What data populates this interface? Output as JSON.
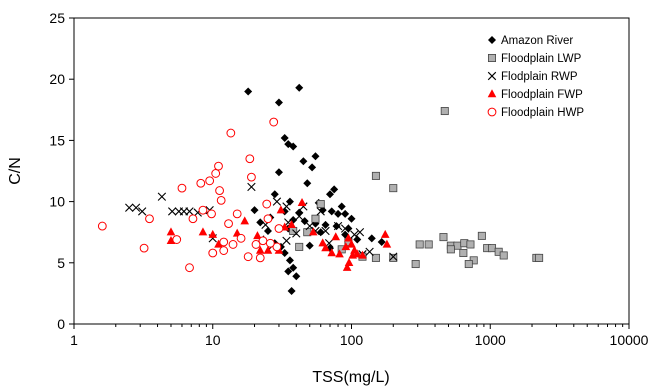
{
  "chart_data": {
    "type": "scatter",
    "xlabel": "TSS(mg/L)",
    "ylabel": "C/N",
    "x_scale": "log",
    "xlim": [
      1,
      10000
    ],
    "ylim": [
      0,
      25
    ],
    "x_ticks": [
      "1",
      "10",
      "100",
      "1000",
      "10000"
    ],
    "y_ticks": [
      "0",
      "5",
      "10",
      "15",
      "20",
      "25"
    ],
    "grid": false,
    "legend_position": "top-right",
    "series": [
      {
        "name": "Amazon River",
        "marker": "diamond",
        "color": "#000000",
        "points": [
          [
            18,
            19
          ],
          [
            42,
            19.3
          ],
          [
            30,
            18.1
          ],
          [
            33,
            15.2
          ],
          [
            35,
            14.7
          ],
          [
            38,
            14.5
          ],
          [
            55,
            13.7
          ],
          [
            45,
            13.3
          ],
          [
            52,
            12.8
          ],
          [
            30,
            12.4
          ],
          [
            48,
            11.5
          ],
          [
            75,
            11
          ],
          [
            70,
            10.6
          ],
          [
            28,
            10.6
          ],
          [
            36,
            10
          ],
          [
            58,
            9.9
          ],
          [
            85,
            9.6
          ],
          [
            62,
            9.3
          ],
          [
            20,
            9.3
          ],
          [
            33,
            9.2
          ],
          [
            72,
            9.2
          ],
          [
            80,
            9
          ],
          [
            90,
            9
          ],
          [
            42,
            9.1
          ],
          [
            100,
            8.6
          ],
          [
            26,
            8.7
          ],
          [
            38,
            8.5
          ],
          [
            46,
            8.4
          ],
          [
            22,
            8.3
          ],
          [
            55,
            8.2
          ],
          [
            65,
            8.1
          ],
          [
            78,
            8
          ],
          [
            95,
            7.8
          ],
          [
            35,
            7.8
          ],
          [
            25,
            7.6
          ],
          [
            60,
            7.5
          ],
          [
            90,
            7.3
          ],
          [
            140,
            7
          ],
          [
            110,
            6.9
          ],
          [
            165,
            6.7
          ],
          [
            28,
            6.6
          ],
          [
            50,
            6.4
          ],
          [
            70,
            6.2
          ],
          [
            31,
            6.3
          ],
          [
            33,
            5.8
          ],
          [
            36,
            5.2
          ],
          [
            38,
            4.6
          ],
          [
            35,
            4.3
          ],
          [
            40,
            3.9
          ],
          [
            37,
            2.7
          ]
        ]
      },
      {
        "name": "Floodplain LWP",
        "marker": "square",
        "color": "#b0b0b0",
        "points": [
          [
            470,
            17.4
          ],
          [
            150,
            12.1
          ],
          [
            200,
            11.1
          ],
          [
            60,
            9.8
          ],
          [
            55,
            8.6
          ],
          [
            48,
            7.5
          ],
          [
            95,
            6.7
          ],
          [
            310,
            6.5
          ],
          [
            360,
            6.5
          ],
          [
            460,
            7.1
          ],
          [
            520,
            6.4
          ],
          [
            580,
            6.4
          ],
          [
            650,
            6.6
          ],
          [
            720,
            6.5
          ],
          [
            870,
            7.2
          ],
          [
            950,
            6.2
          ],
          [
            1030,
            6.2
          ],
          [
            1150,
            5.9
          ],
          [
            1250,
            5.6
          ],
          [
            520,
            6.1
          ],
          [
            760,
            5.2
          ],
          [
            640,
            5.8
          ],
          [
            700,
            4.9
          ],
          [
            2150,
            5.4
          ],
          [
            2250,
            5.4
          ],
          [
            200,
            5.4
          ],
          [
            290,
            4.9
          ],
          [
            150,
            5.4
          ],
          [
            120,
            5.5
          ],
          [
            85,
            6.1
          ],
          [
            42,
            6.3
          ],
          [
            38,
            7.6
          ]
        ]
      },
      {
        "name": "Flodplain RWP",
        "marker": "x",
        "color": "#000000",
        "points": [
          [
            2.5,
            9.5
          ],
          [
            2.8,
            9.5
          ],
          [
            3.1,
            9.2
          ],
          [
            4.3,
            10.4
          ],
          [
            5.1,
            9.2
          ],
          [
            5.7,
            9.2
          ],
          [
            6.2,
            9.2
          ],
          [
            6.8,
            9.2
          ],
          [
            7.8,
            9.1
          ],
          [
            9.5,
            9.3
          ],
          [
            10,
            7
          ],
          [
            19,
            11.2
          ],
          [
            24,
            8.1
          ],
          [
            29,
            10
          ],
          [
            34,
            9.6
          ],
          [
            35,
            8.3
          ],
          [
            42,
            8.8
          ],
          [
            45,
            9.6
          ],
          [
            50,
            8
          ],
          [
            55,
            7.6
          ],
          [
            60,
            9.2
          ],
          [
            65,
            7.6
          ],
          [
            69,
            6.6
          ],
          [
            80,
            8
          ],
          [
            90,
            7.8
          ],
          [
            105,
            7.3
          ],
          [
            115,
            7.5
          ],
          [
            120,
            5.7
          ],
          [
            135,
            5.9
          ],
          [
            200,
            5.5
          ],
          [
            34,
            6.8
          ],
          [
            40,
            7.4
          ],
          [
            22,
            6.9
          ],
          [
            27,
            6.4
          ]
        ]
      },
      {
        "name": "Floodplain FWP",
        "marker": "triangle",
        "color": "#ff0000",
        "points": [
          [
            5,
            7.5
          ],
          [
            5,
            6.8
          ],
          [
            8.5,
            7.5
          ],
          [
            10,
            7.3
          ],
          [
            11,
            6.5
          ],
          [
            15,
            7.4
          ],
          [
            17,
            8.4
          ],
          [
            21,
            7.2
          ],
          [
            25,
            6
          ],
          [
            31,
            9.3
          ],
          [
            33,
            7.9
          ],
          [
            37,
            8.1
          ],
          [
            44,
            9.9
          ],
          [
            53,
            7.5
          ],
          [
            62,
            6.6
          ],
          [
            65,
            6.2
          ],
          [
            72,
            5.8
          ],
          [
            77,
            7.1
          ],
          [
            82,
            5.7
          ],
          [
            91,
            6.3
          ],
          [
            93,
            4.6
          ],
          [
            96,
            5
          ],
          [
            100,
            6.5
          ],
          [
            102,
            5.6
          ],
          [
            105,
            6
          ],
          [
            110,
            5.7
          ],
          [
            120,
            5.6
          ],
          [
            175,
            7.3
          ],
          [
            180,
            6.5
          ],
          [
            22,
            6
          ],
          [
            30,
            6
          ],
          [
            95,
            7
          ]
        ]
      },
      {
        "name": "Floodplain HWP",
        "marker": "circle",
        "color": "#ff0000",
        "points": [
          [
            1.6,
            8
          ],
          [
            3.2,
            6.2
          ],
          [
            3.5,
            8.6
          ],
          [
            5.5,
            6.9
          ],
          [
            6,
            11.1
          ],
          [
            7.2,
            8.6
          ],
          [
            8.2,
            11.5
          ],
          [
            8.5,
            9.3
          ],
          [
            9.5,
            11.7
          ],
          [
            9.8,
            9
          ],
          [
            10.5,
            12.3
          ],
          [
            11,
            12.9
          ],
          [
            11.2,
            10.9
          ],
          [
            11.5,
            10.1
          ],
          [
            12,
            6.7
          ],
          [
            13,
            8.2
          ],
          [
            13.5,
            15.6
          ],
          [
            14,
            6.5
          ],
          [
            15,
            9
          ],
          [
            16,
            7
          ],
          [
            18.5,
            13.5
          ],
          [
            19,
            12
          ],
          [
            18,
            5.5
          ],
          [
            20.5,
            6.5
          ],
          [
            23,
            6.8
          ],
          [
            24.5,
            9.8
          ],
          [
            25,
            8.6
          ],
          [
            27.5,
            16.5
          ],
          [
            29,
            6.3
          ],
          [
            30,
            7.8
          ],
          [
            6.8,
            4.6
          ],
          [
            10,
            5.8
          ],
          [
            12,
            6
          ],
          [
            22,
            5.4
          ],
          [
            26,
            6.6
          ]
        ]
      }
    ]
  }
}
